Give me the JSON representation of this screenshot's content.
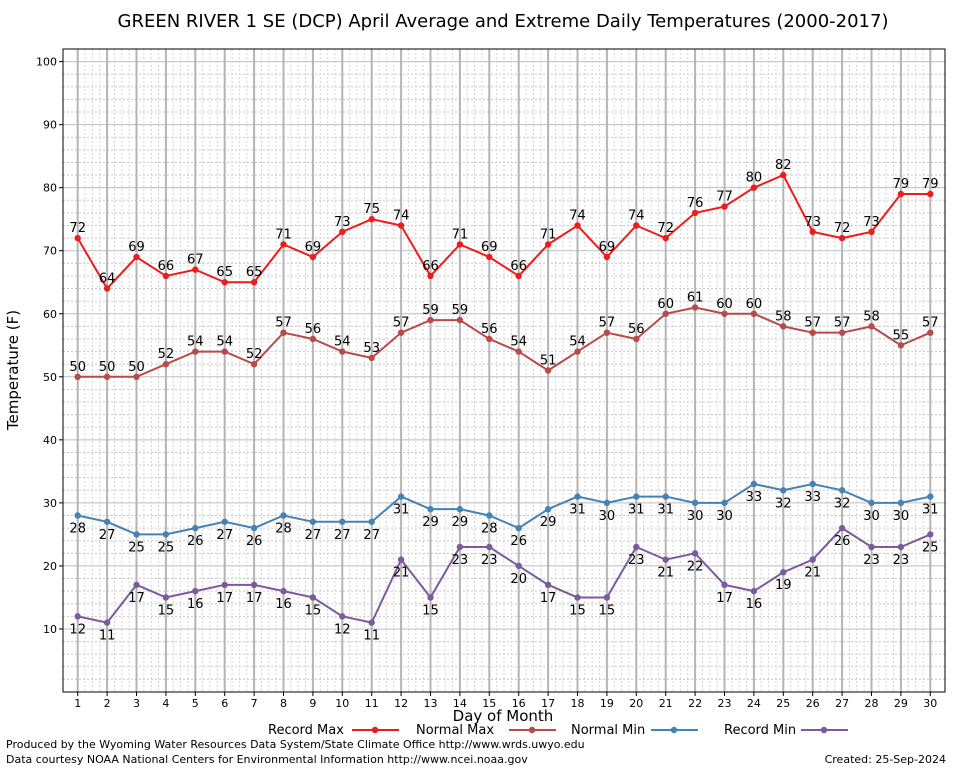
{
  "chart_data": {
    "type": "line",
    "title": "GREEN RIVER 1 SE (DCP) April Average and Extreme Daily Temperatures (2000-2017)",
    "xlabel": "Day of Month",
    "ylabel": "Temperature (F)",
    "ylim": [
      0,
      102
    ],
    "xlim": [
      0.5,
      30.5
    ],
    "yticks": [
      10,
      20,
      30,
      40,
      50,
      60,
      70,
      80,
      90,
      100
    ],
    "x": [
      1,
      2,
      3,
      4,
      5,
      6,
      7,
      8,
      9,
      10,
      11,
      12,
      13,
      14,
      15,
      16,
      17,
      18,
      19,
      20,
      21,
      22,
      23,
      24,
      25,
      26,
      27,
      28,
      29,
      30
    ],
    "grid": true,
    "legend_position": "bottom",
    "series": [
      {
        "name": "Record Max",
        "color": "#ee1c1c",
        "label_side": "above",
        "values": [
          72,
          64,
          69,
          66,
          67,
          65,
          65,
          71,
          69,
          73,
          75,
          74,
          66,
          71,
          69,
          66,
          71,
          74,
          69,
          74,
          72,
          76,
          77,
          80,
          82,
          73,
          72,
          73,
          79,
          79
        ]
      },
      {
        "name": "Normal Max",
        "color": "#b84a4a",
        "label_side": "above",
        "values": [
          50,
          50,
          50,
          52,
          54,
          54,
          52,
          57,
          56,
          54,
          53,
          57,
          59,
          59,
          56,
          54,
          51,
          54,
          57,
          56,
          60,
          61,
          60,
          60,
          58,
          57,
          57,
          58,
          55,
          57
        ]
      },
      {
        "name": "Normal Min",
        "color": "#4682b4",
        "label_side": "below",
        "values": [
          28,
          27,
          25,
          25,
          26,
          27,
          26,
          28,
          27,
          27,
          27,
          31,
          29,
          29,
          28,
          26,
          29,
          31,
          30,
          31,
          31,
          30,
          30,
          33,
          32,
          33,
          32,
          30,
          30,
          31
        ]
      },
      {
        "name": "Record Min",
        "color": "#7d5a9e",
        "label_side": "below",
        "values": [
          12,
          11,
          17,
          15,
          16,
          17,
          17,
          16,
          15,
          12,
          11,
          21,
          15,
          23,
          23,
          20,
          17,
          15,
          15,
          23,
          21,
          22,
          17,
          16,
          19,
          21,
          26,
          23,
          23,
          25
        ]
      }
    ]
  },
  "footer": {
    "line1": "Produced by the Wyoming Water Resources Data System/State Climate Office http://www.wrds.uwyo.edu",
    "line2": "Data courtesy NOAA National Centers for Environmental Information http://www.ncei.noaa.gov",
    "created": "Created:  25-Sep-2024"
  }
}
